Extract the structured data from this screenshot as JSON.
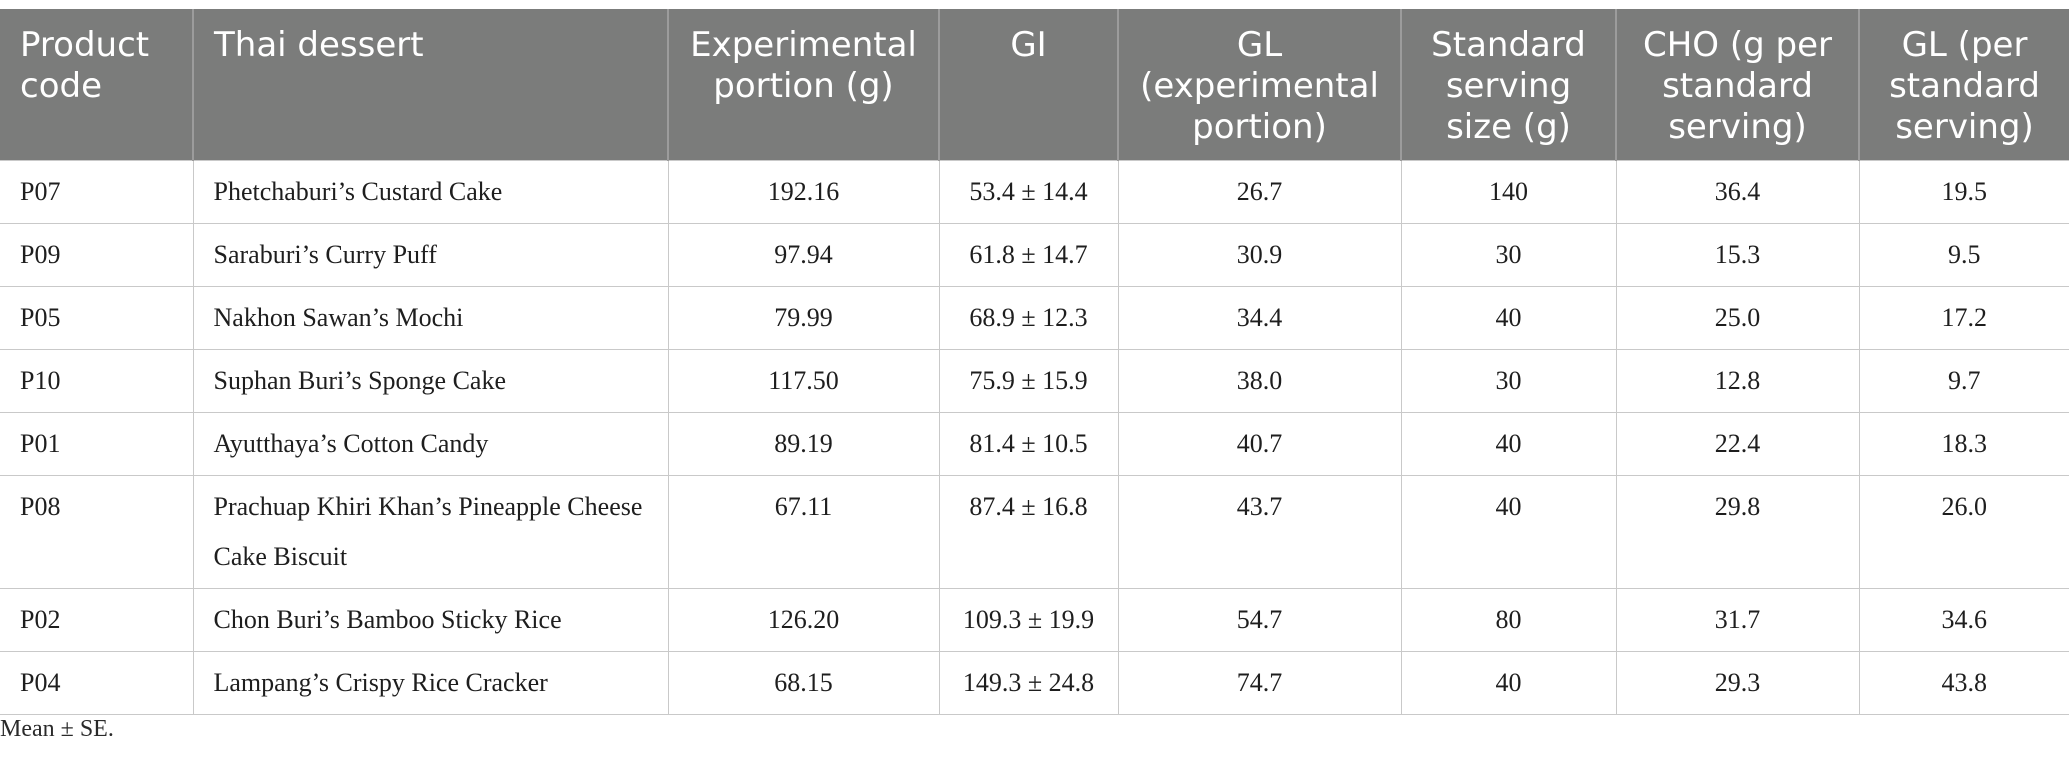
{
  "table": {
    "headers": [
      "Product code",
      "Thai dessert",
      "Experimental portion (g)",
      "GI",
      "GL (experimental portion)",
      "Standard serving size (g)",
      "CHO (g per standard serving)",
      "GL (per standard serving)"
    ],
    "rows": [
      [
        "P07",
        "Phetchaburi’s Custard Cake",
        "192.16",
        "53.4 ± 14.4",
        "26.7",
        "140",
        "36.4",
        "19.5"
      ],
      [
        "P09",
        "Saraburi’s Curry Puff",
        "97.94",
        "61.8 ± 14.7",
        "30.9",
        "30",
        "15.3",
        "9.5"
      ],
      [
        "P05",
        "Nakhon Sawan’s Mochi",
        "79.99",
        "68.9 ± 12.3",
        "34.4",
        "40",
        "25.0",
        "17.2"
      ],
      [
        "P10",
        "Suphan Buri’s Sponge Cake",
        "117.50",
        "75.9 ± 15.9",
        "38.0",
        "30",
        "12.8",
        "9.7"
      ],
      [
        "P01",
        "Ayutthaya’s Cotton Candy",
        "89.19",
        "81.4 ± 10.5",
        "40.7",
        "40",
        "22.4",
        "18.3"
      ],
      [
        "P08",
        "Prachuap Khiri Khan’s Pineapple Cheese Cake Biscuit",
        "67.11",
        "87.4 ± 16.8",
        "43.7",
        "40",
        "29.8",
        "26.0"
      ],
      [
        "P02",
        "Chon Buri’s Bamboo Sticky Rice",
        "126.20",
        "109.3 ± 19.9",
        "54.7",
        "80",
        "31.7",
        "34.6"
      ],
      [
        "P04",
        "Lampang’s Crispy Rice Cracker",
        "68.15",
        "149.3 ± 24.8",
        "74.7",
        "40",
        "29.3",
        "43.8"
      ]
    ]
  },
  "footnote": "Mean ± SE.",
  "colors": {
    "header_bg": "#7b7c7b",
    "header_text": "#ffffff",
    "grid": "#c9c9c9"
  }
}
